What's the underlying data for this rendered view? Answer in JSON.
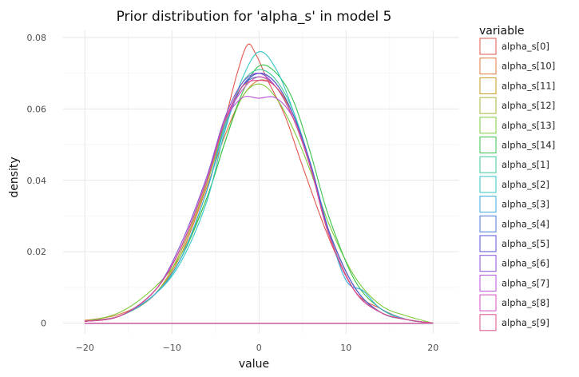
{
  "chart_data": {
    "type": "line",
    "title": "Prior distribution for 'alpha_s' in model 5",
    "xlabel": "value",
    "ylabel": "density",
    "xlim": [
      -22.5,
      23
    ],
    "ylim": [
      -0.003,
      0.082
    ],
    "x_ticks": [
      -20,
      -10,
      0,
      10,
      20
    ],
    "x_tick_labels": [
      "−20",
      "−10",
      "0",
      "10",
      "20"
    ],
    "y_ticks": [
      0,
      0.02,
      0.04,
      0.06,
      0.08
    ],
    "y_tick_labels": [
      "0",
      "0.02",
      "0.04",
      "0.06",
      "0.08"
    ],
    "grid": true,
    "legend_title": "variable",
    "legend_position": "right",
    "series": [
      {
        "name": "alpha_s[0]",
        "color": "#e2574c",
        "x": [
          -20,
          -16,
          -12,
          -9,
          -6,
          -4,
          -2.5,
          -1.3,
          -0.3,
          1,
          3,
          5,
          8,
          11,
          14,
          17,
          20
        ],
        "values": [
          0.0008,
          0.002,
          0.008,
          0.02,
          0.039,
          0.056,
          0.07,
          0.078,
          0.075,
          0.068,
          0.058,
          0.044,
          0.024,
          0.009,
          0.004,
          0.001,
          0
        ]
      },
      {
        "name": "alpha_s[10]",
        "color": "#dd7a3c",
        "x": [
          -20,
          -16,
          -12,
          -9,
          -6,
          -4,
          -2,
          0,
          2,
          4,
          6,
          8,
          11,
          14,
          17,
          20
        ],
        "values": [
          0.0008,
          0.0025,
          0.008,
          0.019,
          0.038,
          0.052,
          0.063,
          0.068,
          0.066,
          0.058,
          0.043,
          0.026,
          0.01,
          0.003,
          0.001,
          0
        ]
      },
      {
        "name": "alpha_s[11]",
        "color": "#c39a1c",
        "x": [
          -20,
          -16,
          -12,
          -9,
          -6,
          -4,
          -2,
          0,
          2,
          4,
          6,
          8,
          11,
          14,
          17,
          20
        ],
        "values": [
          0.0005,
          0.002,
          0.008,
          0.02,
          0.039,
          0.055,
          0.066,
          0.069,
          0.066,
          0.058,
          0.044,
          0.026,
          0.01,
          0.003,
          0.001,
          0
        ]
      },
      {
        "name": "alpha_s[12]",
        "color": "#a9b43c",
        "x": [
          -20,
          -16,
          -12,
          -9,
          -6,
          -4,
          -2,
          0,
          2,
          4,
          6,
          8,
          11,
          14,
          17,
          20
        ],
        "values": [
          0.0005,
          0.002,
          0.008,
          0.02,
          0.039,
          0.055,
          0.066,
          0.07,
          0.067,
          0.058,
          0.044,
          0.026,
          0.01,
          0.003,
          0.001,
          0
        ]
      },
      {
        "name": "alpha_s[13]",
        "color": "#7ecb3c",
        "x": [
          -20,
          -16,
          -12,
          -9,
          -6,
          -4,
          -2,
          0,
          2,
          4,
          6,
          8,
          11,
          14,
          17,
          20
        ],
        "values": [
          0.0005,
          0.003,
          0.01,
          0.019,
          0.035,
          0.05,
          0.063,
          0.067,
          0.063,
          0.054,
          0.042,
          0.028,
          0.013,
          0.005,
          0.002,
          0
        ]
      },
      {
        "name": "alpha_s[14]",
        "color": "#3bc24c",
        "x": [
          -20,
          -16,
          -12,
          -9,
          -6,
          -4,
          -2,
          0,
          2,
          4,
          6,
          8,
          11,
          14,
          17,
          20
        ],
        "values": [
          0.0005,
          0.002,
          0.008,
          0.018,
          0.035,
          0.05,
          0.064,
          0.072,
          0.07,
          0.062,
          0.047,
          0.03,
          0.012,
          0.004,
          0.001,
          0
        ]
      },
      {
        "name": "alpha_s[1]",
        "color": "#3cc997",
        "x": [
          -20,
          -16,
          -12,
          -9,
          -6,
          -4,
          -2,
          0,
          2,
          4,
          6,
          8,
          11,
          14,
          17,
          20
        ],
        "values": [
          0.0005,
          0.002,
          0.008,
          0.018,
          0.037,
          0.055,
          0.067,
          0.071,
          0.068,
          0.059,
          0.044,
          0.026,
          0.01,
          0.003,
          0.001,
          0
        ]
      },
      {
        "name": "alpha_s[2]",
        "color": "#36c6c4",
        "x": [
          -20,
          -16,
          -12,
          -9,
          -6,
          -4,
          -2,
          0,
          2,
          4,
          6,
          8,
          11,
          14,
          17,
          20
        ],
        "values": [
          0.0005,
          0.002,
          0.008,
          0.017,
          0.034,
          0.053,
          0.068,
          0.076,
          0.071,
          0.059,
          0.044,
          0.026,
          0.01,
          0.003,
          0.001,
          0
        ]
      },
      {
        "name": "alpha_s[3]",
        "color": "#38a9dd",
        "x": [
          -20,
          -16,
          -12,
          -9,
          -6,
          -4,
          -2,
          0,
          2,
          4,
          6,
          8,
          10,
          12,
          14,
          17,
          20
        ],
        "values": [
          0.0005,
          0.002,
          0.008,
          0.018,
          0.037,
          0.054,
          0.066,
          0.07,
          0.067,
          0.058,
          0.044,
          0.026,
          0.012,
          0.009,
          0.004,
          0.001,
          0
        ]
      },
      {
        "name": "alpha_s[4]",
        "color": "#4778d6",
        "x": [
          -20,
          -16,
          -12,
          -9,
          -6,
          -4,
          -2,
          0,
          2,
          4,
          6,
          8,
          11,
          14,
          17,
          20
        ],
        "values": [
          0.0005,
          0.002,
          0.009,
          0.021,
          0.04,
          0.056,
          0.066,
          0.069,
          0.066,
          0.057,
          0.043,
          0.025,
          0.009,
          0.003,
          0.001,
          0
        ]
      },
      {
        "name": "alpha_s[5]",
        "color": "#5a4fd3",
        "x": [
          -20,
          -16,
          -12,
          -9,
          -6,
          -4,
          -2,
          0,
          2,
          4,
          6,
          8,
          11,
          14,
          17,
          20
        ],
        "values": [
          0.0005,
          0.002,
          0.009,
          0.021,
          0.04,
          0.056,
          0.066,
          0.07,
          0.067,
          0.058,
          0.044,
          0.026,
          0.01,
          0.003,
          0.001,
          0
        ]
      },
      {
        "name": "alpha_s[6]",
        "color": "#8a4fd6",
        "x": [
          -20,
          -16,
          -12,
          -9,
          -6,
          -4,
          -2,
          0,
          2,
          4,
          6,
          8,
          11,
          14,
          17,
          20
        ],
        "values": [
          0.0005,
          0.002,
          0.009,
          0.022,
          0.041,
          0.057,
          0.067,
          0.07,
          0.066,
          0.057,
          0.043,
          0.025,
          0.009,
          0.003,
          0.001,
          0
        ]
      },
      {
        "name": "alpha_s[7]",
        "color": "#b94fd8",
        "x": [
          -20,
          -16,
          -12,
          -9,
          -6,
          -4,
          -2,
          0,
          2,
          4,
          6,
          8,
          11,
          14,
          17,
          20
        ],
        "values": [
          0.0005,
          0.002,
          0.009,
          0.021,
          0.04,
          0.056,
          0.063,
          0.063,
          0.063,
          0.057,
          0.043,
          0.025,
          0.009,
          0.003,
          0.001,
          0
        ]
      },
      {
        "name": "alpha_s[8]",
        "color": "#d64fbf",
        "x": [
          -20,
          -16,
          -12,
          -9,
          -6,
          -4,
          -2,
          0,
          2,
          4,
          6,
          8,
          11,
          14,
          17,
          20
        ],
        "values": [
          0.0005,
          0.002,
          0.009,
          0.021,
          0.04,
          0.056,
          0.065,
          0.069,
          0.066,
          0.057,
          0.043,
          0.025,
          0.009,
          0.003,
          0.001,
          0
        ]
      },
      {
        "name": "alpha_s[9]",
        "color": "#d9508a",
        "x": [
          -20,
          -16,
          -12,
          -9,
          -6,
          -4,
          -2,
          0,
          2,
          4,
          6,
          8,
          11,
          14,
          17,
          20
        ],
        "values": [
          0.0005,
          0.002,
          0.009,
          0.021,
          0.04,
          0.056,
          0.066,
          0.068,
          0.066,
          0.057,
          0.043,
          0.025,
          0.009,
          0.003,
          0.001,
          0
        ]
      }
    ]
  }
}
